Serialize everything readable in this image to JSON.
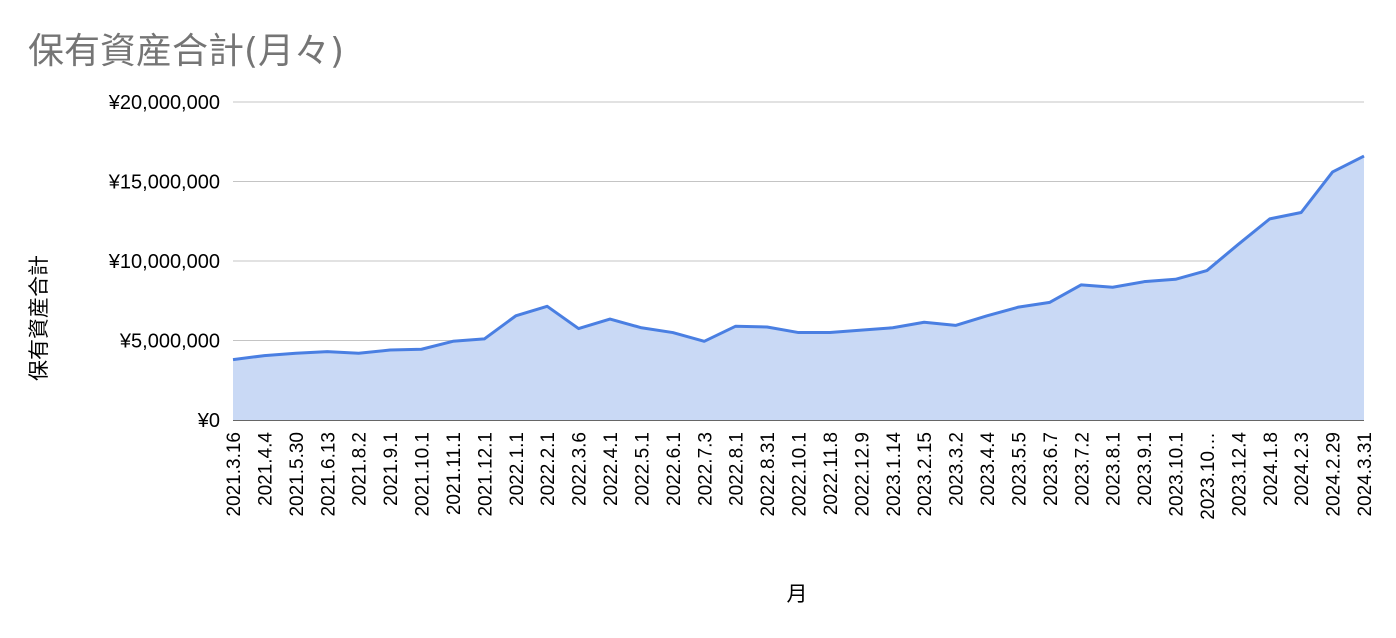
{
  "chart_data": {
    "type": "area",
    "title": "保有資産合計(月々)",
    "xlabel": "月",
    "ylabel": "保有資産合計",
    "ylim": [
      0,
      20000000
    ],
    "y_ticks": [
      "¥0",
      "¥5,000,000",
      "¥10,000,000",
      "¥15,000,000",
      "¥20,000,000"
    ],
    "grid": true,
    "line_color": "#4a7fe2",
    "fill_color": "#c9d9f5",
    "categories": [
      "2021.3.16",
      "2021.4.4",
      "2021.5.30",
      "2021.6.13",
      "2021.8.2",
      "2021.9.1",
      "2021.10.1",
      "2021.11.1",
      "2021.12.1",
      "2022.1.1",
      "2022.2.1",
      "2022.3.6",
      "2022.4.1",
      "2022.5.1",
      "2022.6.1",
      "2022.7.3",
      "2022.8.1",
      "2022.8.31",
      "2022.10.1",
      "2022.11.8",
      "2022.12.9",
      "2023.1.14",
      "2023.2.15",
      "2023.3.2",
      "2023.4.4",
      "2023.5.5",
      "2023.6.7",
      "2023.7.2",
      "2023.8.1",
      "2023.9.1",
      "2023.10.1",
      "2023.10…",
      "2023.12.4",
      "2024.1.8",
      "2024.2.3",
      "2024.2.29",
      "2024.3.31"
    ],
    "values": [
      3800000,
      4050000,
      4200000,
      4300000,
      4200000,
      4400000,
      4450000,
      4950000,
      5100000,
      6550000,
      7150000,
      5750000,
      6350000,
      5800000,
      5500000,
      4950000,
      5900000,
      5850000,
      5500000,
      5500000,
      5650000,
      5800000,
      6150000,
      5950000,
      6550000,
      7100000,
      7400000,
      8500000,
      8350000,
      8700000,
      8850000,
      9400000,
      11050000,
      12650000,
      13050000,
      15600000,
      16600000
    ]
  }
}
